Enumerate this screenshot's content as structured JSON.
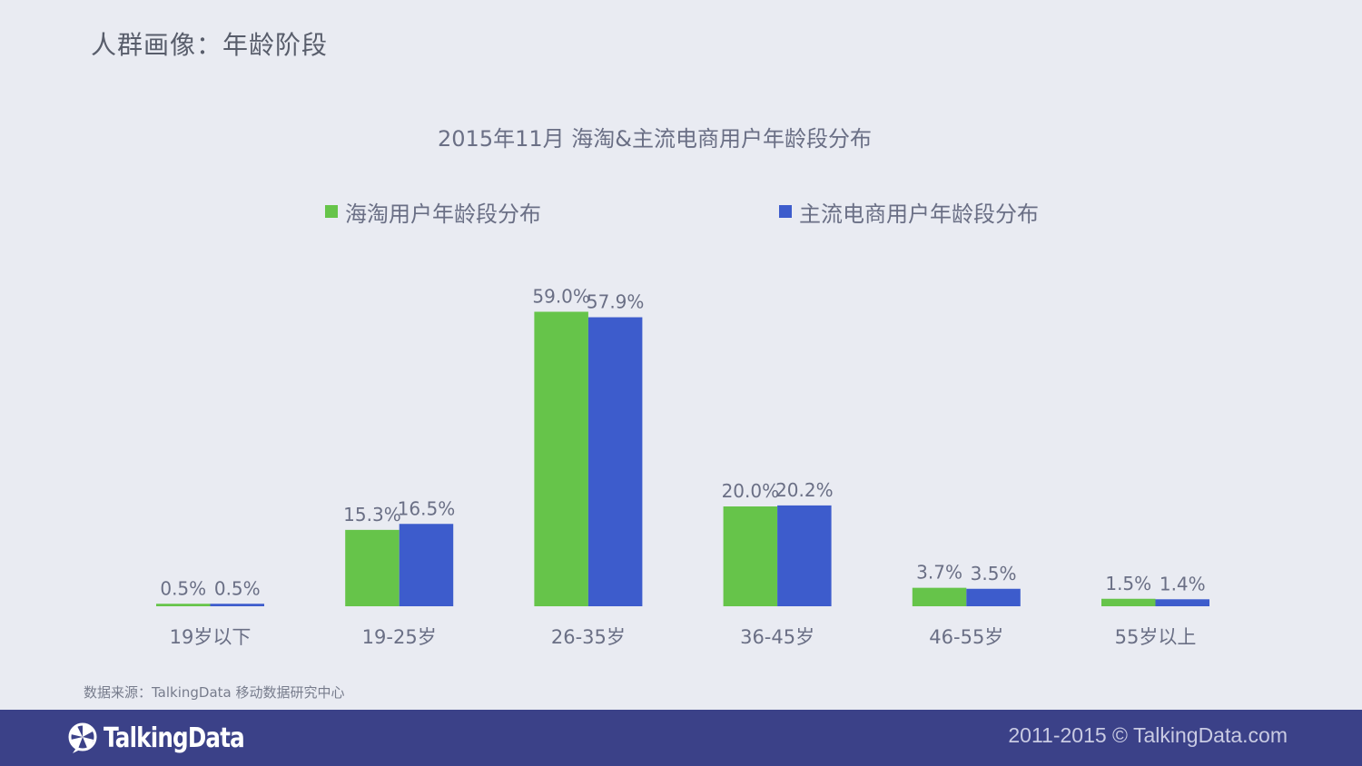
{
  "page": {
    "title": "人群画像：年龄阶段",
    "source": "数据来源：TalkingData 移动数据研究中心",
    "footer_brand": "TalkingData",
    "footer_copyright": "2011-2015 © TalkingData.com"
  },
  "colors": {
    "series1": "#66c44a",
    "series2": "#3d5ccc",
    "background": "#e9ebf2",
    "footer": "#3b4188"
  },
  "chart_data": {
    "type": "bar",
    "title": "2015年11月 海淘&主流电商用户年龄段分布",
    "categories": [
      "19岁以下",
      "19-25岁",
      "26-35岁",
      "36-45岁",
      "46-55岁",
      "55岁以上"
    ],
    "series": [
      {
        "name": "海淘用户年龄段分布",
        "values": [
          0.5,
          15.3,
          59.0,
          20.0,
          3.7,
          1.5
        ],
        "labels": [
          "0.5%",
          "15.3%",
          "59.0%",
          "20.0%",
          "3.7%",
          "1.5%"
        ]
      },
      {
        "name": "主流电商用户年龄段分布",
        "values": [
          0.5,
          16.5,
          57.9,
          20.2,
          3.5,
          1.4
        ],
        "labels": [
          "0.5%",
          "16.5%",
          "57.9%",
          "20.2%",
          "3.5%",
          "1.4%"
        ]
      }
    ],
    "unit": "%",
    "ylim": [
      0,
      60
    ],
    "grid": false,
    "legend_position": "top"
  }
}
